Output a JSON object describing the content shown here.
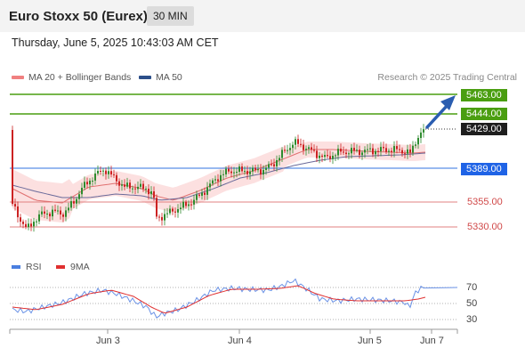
{
  "header": {
    "title": "Euro Stoxx 50 (Eurex)",
    "timeframe": "30 MIN"
  },
  "datetime": "Thursday, June 5, 2025 10:43:03 AM CET",
  "legend": {
    "items": [
      {
        "label": "MA 20 + Bollinger Bands",
        "color": "#f08080"
      },
      {
        "label": "MA 50",
        "color": "#2c4f8a"
      }
    ],
    "credit": "Research © 2025 Trading Central"
  },
  "levels": {
    "r2": "5463.00",
    "r1": "5444.00",
    "last": "5429.00",
    "pivot": "5389.00",
    "s1": "5355.00",
    "s2": "5330.00"
  },
  "rsi": {
    "legend": [
      {
        "label": "RSI",
        "color": "#4a7fe0"
      },
      {
        "label": "9MA",
        "color": "#e03030"
      }
    ],
    "ticks": [
      "70",
      "50",
      "30"
    ]
  },
  "xaxis": {
    "labels": [
      "Jun 3",
      "Jun 4",
      "Jun 5",
      "Jun 7"
    ]
  },
  "colors": {
    "up": "#2e8b2e",
    "down": "#cc2222",
    "green_line": "#4a9e10",
    "blue_line": "#5b8fe6",
    "red_line": "#e08080",
    "band": "#fbd5d5"
  }
}
